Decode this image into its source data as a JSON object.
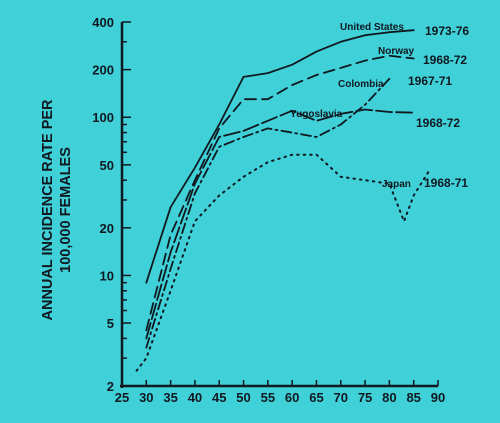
{
  "chart_data": {
    "type": "line",
    "ylabel_lines": [
      "ANNUAL INCIDENCE RATE PER",
      "100,000 FEMALES"
    ],
    "x_ticks": [
      25,
      30,
      35,
      40,
      45,
      50,
      55,
      60,
      65,
      70,
      75,
      80,
      85,
      90
    ],
    "y_ticks": [
      2,
      5,
      10,
      20,
      50,
      100,
      200,
      400
    ],
    "xlim": [
      25,
      90
    ],
    "ylim": [
      2,
      400
    ],
    "y_scale": "log",
    "grid": false,
    "series": [
      {
        "name": "United States",
        "years": "1973-76",
        "style": "solid",
        "x": [
          30,
          35,
          40,
          45,
          50,
          55,
          60,
          65,
          70,
          75,
          80,
          85
        ],
        "y": [
          9,
          27,
          48,
          90,
          180,
          190,
          215,
          260,
          300,
          330,
          345,
          355
        ]
      },
      {
        "name": "Norway",
        "years": "1968-72",
        "style": "dashed",
        "x": [
          30,
          35,
          40,
          45,
          50,
          55,
          60,
          65,
          70,
          75,
          80,
          85
        ],
        "y": [
          4.5,
          18,
          40,
          85,
          130,
          130,
          160,
          185,
          205,
          228,
          245,
          235
        ]
      },
      {
        "name": "Colombia",
        "years": "1967-71",
        "style": "dash-dot",
        "x": [
          30,
          35,
          40,
          45,
          50,
          55,
          60,
          65,
          70,
          75,
          80
        ],
        "y": [
          3.5,
          11,
          33,
          65,
          75,
          85,
          80,
          75,
          90,
          120,
          175
        ]
      },
      {
        "name": "Yugoslavia",
        "years": "1968-72",
        "style": "long-dash",
        "x": [
          30,
          35,
          40,
          45,
          50,
          55,
          60,
          65,
          70,
          75,
          80,
          85
        ],
        "y": [
          4,
          14,
          38,
          75,
          82,
          95,
          110,
          95,
          105,
          112,
          108,
          107
        ]
      },
      {
        "name": "Japan",
        "years": "1968-71",
        "style": "dotted",
        "x": [
          28,
          30,
          35,
          40,
          45,
          50,
          55,
          60,
          65,
          70,
          75,
          80,
          83,
          85,
          88
        ],
        "y": [
          2.5,
          3,
          8,
          22,
          32,
          42,
          52,
          58,
          58,
          42,
          40,
          38,
          22,
          32,
          45
        ]
      }
    ]
  }
}
